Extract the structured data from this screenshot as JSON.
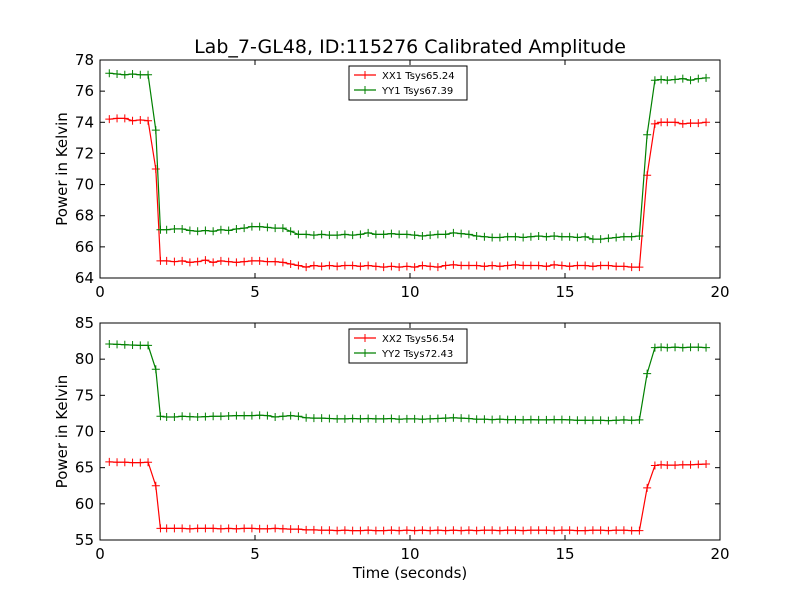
{
  "figure": {
    "title": "Lab_7-GL48, ID:115276 Calibrated Amplitude",
    "xlabel": "Time (seconds)"
  },
  "chart_data": [
    {
      "type": "line",
      "title": "Lab_7-GL48, ID:115276 Calibrated Amplitude",
      "xlabel": "",
      "ylabel": "Power in Kelvin",
      "xlim": [
        0,
        20
      ],
      "ylim": [
        64,
        78
      ],
      "xticks": [
        0,
        5,
        10,
        15,
        20
      ],
      "yticks": [
        64,
        66,
        68,
        70,
        72,
        74,
        76,
        78
      ],
      "legend": "top-center",
      "x": [
        0.3,
        0.55,
        0.8,
        1.05,
        1.3,
        1.55,
        1.8,
        1.95,
        2.15,
        2.4,
        2.65,
        2.9,
        3.15,
        3.4,
        3.65,
        3.9,
        4.15,
        4.4,
        4.65,
        4.9,
        5.15,
        5.4,
        5.65,
        5.9,
        6.15,
        6.4,
        6.65,
        6.9,
        7.15,
        7.4,
        7.65,
        7.9,
        8.15,
        8.4,
        8.65,
        8.9,
        9.15,
        9.4,
        9.65,
        9.9,
        10.15,
        10.4,
        10.65,
        10.9,
        11.15,
        11.4,
        11.65,
        11.9,
        12.15,
        12.4,
        12.65,
        12.9,
        13.15,
        13.4,
        13.65,
        13.9,
        14.15,
        14.4,
        14.65,
        14.9,
        15.15,
        15.4,
        15.65,
        15.9,
        16.15,
        16.4,
        16.65,
        16.9,
        17.15,
        17.4,
        17.65,
        17.9,
        18.1,
        18.3,
        18.55,
        18.8,
        19.05,
        19.3,
        19.55
      ],
      "series": [
        {
          "name": "XX1 Tsys65.24",
          "color": "#ff0000",
          "values": [
            74.2,
            74.25,
            74.25,
            74.1,
            74.15,
            74.1,
            71.0,
            65.1,
            65.1,
            65.05,
            65.1,
            65.0,
            65.05,
            65.15,
            65.0,
            65.1,
            65.05,
            65.0,
            65.05,
            65.1,
            65.1,
            65.05,
            65.05,
            65.0,
            64.9,
            64.8,
            64.7,
            64.8,
            64.75,
            64.8,
            64.75,
            64.8,
            64.8,
            64.75,
            64.8,
            64.75,
            64.7,
            64.75,
            64.7,
            64.75,
            64.7,
            64.8,
            64.75,
            64.7,
            64.8,
            64.85,
            64.8,
            64.8,
            64.8,
            64.75,
            64.8,
            64.75,
            64.8,
            64.85,
            64.8,
            64.8,
            64.8,
            64.75,
            64.85,
            64.8,
            64.75,
            64.8,
            64.8,
            64.75,
            64.8,
            64.8,
            64.75,
            64.75,
            64.7,
            64.7,
            70.6,
            73.9,
            74.0,
            74.0,
            74.0,
            73.9,
            73.95,
            73.95,
            74.0
          ]
        },
        {
          "name": "YY1 Tsys67.39",
          "color": "#008000",
          "values": [
            77.15,
            77.1,
            77.05,
            77.1,
            77.05,
            77.05,
            73.5,
            67.1,
            67.1,
            67.15,
            67.15,
            67.05,
            67.0,
            67.05,
            67.0,
            67.1,
            67.05,
            67.15,
            67.2,
            67.3,
            67.3,
            67.25,
            67.2,
            67.2,
            67.0,
            66.8,
            66.8,
            66.75,
            66.8,
            66.75,
            66.75,
            66.8,
            66.75,
            66.8,
            66.9,
            66.8,
            66.8,
            66.85,
            66.8,
            66.8,
            66.75,
            66.7,
            66.75,
            66.8,
            66.8,
            66.9,
            66.85,
            66.8,
            66.7,
            66.65,
            66.6,
            66.6,
            66.65,
            66.65,
            66.6,
            66.65,
            66.7,
            66.65,
            66.7,
            66.65,
            66.65,
            66.6,
            66.65,
            66.5,
            66.5,
            66.55,
            66.6,
            66.65,
            66.65,
            66.7,
            73.2,
            76.7,
            76.75,
            76.7,
            76.75,
            76.8,
            76.7,
            76.8,
            76.85
          ]
        }
      ]
    },
    {
      "type": "line",
      "title": "",
      "xlabel": "Time (seconds)",
      "ylabel": "Power in Kelvin",
      "xlim": [
        0,
        20
      ],
      "ylim": [
        55,
        85
      ],
      "xticks": [
        0,
        5,
        10,
        15,
        20
      ],
      "yticks": [
        55,
        60,
        65,
        70,
        75,
        80,
        85
      ],
      "legend": "top-center",
      "x": [
        0.3,
        0.55,
        0.8,
        1.05,
        1.3,
        1.55,
        1.8,
        1.95,
        2.15,
        2.4,
        2.65,
        2.9,
        3.15,
        3.4,
        3.65,
        3.9,
        4.15,
        4.4,
        4.65,
        4.9,
        5.15,
        5.4,
        5.65,
        5.9,
        6.15,
        6.4,
        6.65,
        6.9,
        7.15,
        7.4,
        7.65,
        7.9,
        8.15,
        8.4,
        8.65,
        8.9,
        9.15,
        9.4,
        9.65,
        9.9,
        10.15,
        10.4,
        10.65,
        10.9,
        11.15,
        11.4,
        11.65,
        11.9,
        12.15,
        12.4,
        12.65,
        12.9,
        13.15,
        13.4,
        13.65,
        13.9,
        14.15,
        14.4,
        14.65,
        14.9,
        15.15,
        15.4,
        15.65,
        15.9,
        16.15,
        16.4,
        16.65,
        16.9,
        17.15,
        17.4,
        17.65,
        17.9,
        18.1,
        18.3,
        18.55,
        18.8,
        19.05,
        19.3,
        19.55
      ],
      "series": [
        {
          "name": "XX2 Tsys56.54",
          "color": "#ff0000",
          "values": [
            65.8,
            65.75,
            65.75,
            65.7,
            65.7,
            65.75,
            62.5,
            56.6,
            56.6,
            56.6,
            56.6,
            56.55,
            56.6,
            56.6,
            56.6,
            56.55,
            56.6,
            56.55,
            56.6,
            56.6,
            56.55,
            56.55,
            56.6,
            56.55,
            56.5,
            56.5,
            56.4,
            56.4,
            56.35,
            56.35,
            56.3,
            56.35,
            56.3,
            56.3,
            56.35,
            56.3,
            56.3,
            56.35,
            56.3,
            56.35,
            56.3,
            56.35,
            56.3,
            56.35,
            56.3,
            56.35,
            56.3,
            56.35,
            56.3,
            56.35,
            56.35,
            56.3,
            56.35,
            56.35,
            56.3,
            56.35,
            56.35,
            56.35,
            56.3,
            56.35,
            56.35,
            56.3,
            56.3,
            56.35,
            56.35,
            56.3,
            56.35,
            56.35,
            56.3,
            56.3,
            62.2,
            65.3,
            65.4,
            65.35,
            65.35,
            65.4,
            65.4,
            65.45,
            65.5
          ]
        },
        {
          "name": "YY2 Tsys72.43",
          "color": "#008000",
          "values": [
            82.1,
            82.05,
            82.0,
            81.95,
            81.9,
            81.9,
            78.6,
            72.1,
            72.0,
            72.0,
            72.1,
            72.05,
            72.0,
            72.05,
            72.1,
            72.1,
            72.15,
            72.2,
            72.2,
            72.2,
            72.25,
            72.2,
            72.0,
            72.1,
            72.2,
            72.1,
            71.9,
            71.85,
            71.85,
            71.8,
            71.75,
            71.75,
            71.8,
            71.75,
            71.8,
            71.75,
            71.75,
            71.8,
            71.7,
            71.75,
            71.75,
            71.7,
            71.75,
            71.8,
            71.85,
            71.9,
            71.85,
            71.8,
            71.7,
            71.7,
            71.65,
            71.7,
            71.65,
            71.65,
            71.6,
            71.65,
            71.6,
            71.6,
            71.65,
            71.65,
            71.6,
            71.55,
            71.55,
            71.55,
            71.55,
            71.5,
            71.55,
            71.6,
            71.55,
            71.6,
            78.0,
            81.6,
            81.65,
            81.6,
            81.65,
            81.6,
            81.65,
            81.65,
            81.6
          ]
        }
      ]
    }
  ]
}
